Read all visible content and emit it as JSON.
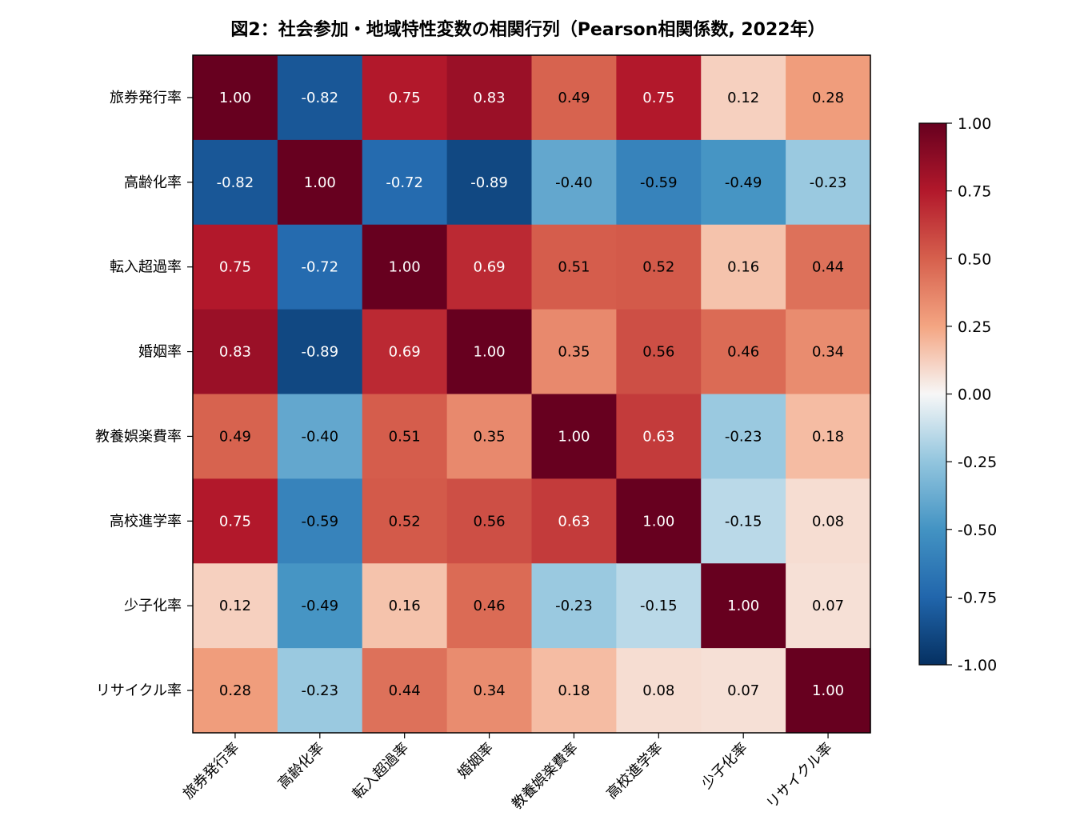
{
  "chart_data": {
    "type": "heatmap",
    "title": "図2：社会参加・地域特性変数の相関行列（Pearson相関係数, 2022年）",
    "variables": [
      "旅券発行率",
      "高齢化率",
      "転入超過率",
      "婚姻率",
      "教養娯楽費率",
      "高校進学率",
      "少子化率",
      "リサイクル率"
    ],
    "matrix": [
      [
        1.0,
        -0.82,
        0.75,
        0.83,
        0.49,
        0.75,
        0.12,
        0.28
      ],
      [
        -0.82,
        1.0,
        -0.72,
        -0.89,
        -0.4,
        -0.59,
        -0.49,
        -0.23
      ],
      [
        0.75,
        -0.72,
        1.0,
        0.69,
        0.51,
        0.52,
        0.16,
        0.44
      ],
      [
        0.83,
        -0.89,
        0.69,
        1.0,
        0.35,
        0.56,
        0.46,
        0.34
      ],
      [
        0.49,
        -0.4,
        0.51,
        0.35,
        1.0,
        0.63,
        -0.23,
        0.18
      ],
      [
        0.75,
        -0.59,
        0.52,
        0.56,
        0.63,
        1.0,
        -0.15,
        0.08
      ],
      [
        0.12,
        -0.49,
        0.16,
        0.46,
        -0.23,
        -0.15,
        1.0,
        0.07
      ],
      [
        0.28,
        -0.23,
        0.44,
        0.34,
        0.18,
        0.08,
        0.07,
        1.0
      ]
    ],
    "value_format": "2 decimals",
    "colormap": "RdBu_r",
    "vmin": -1.0,
    "vmax": 1.0,
    "colorbar": {
      "ticks": [
        1.0,
        0.75,
        0.5,
        0.25,
        0.0,
        -0.25,
        -0.5,
        -0.75,
        -1.0
      ],
      "tick_labels": [
        "1.00",
        "0.75",
        "0.50",
        "0.25",
        "0.00",
        "-0.25",
        "-0.50",
        "-0.75",
        "-1.00"
      ],
      "placement": "right"
    },
    "grid": false,
    "x_tick_rotation": "45"
  }
}
